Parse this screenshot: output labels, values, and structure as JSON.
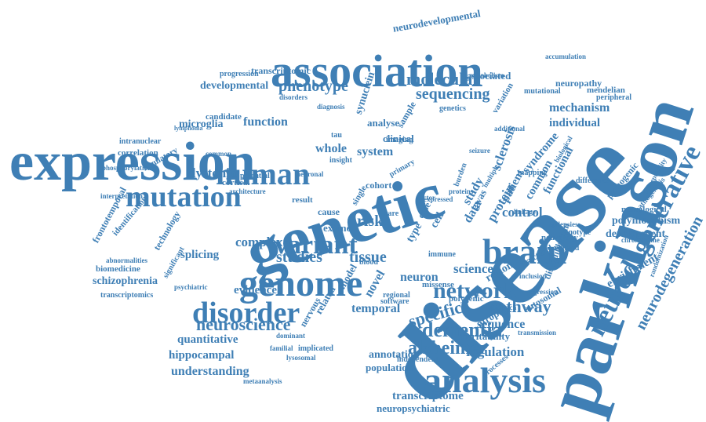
{
  "word_color": "#3f7fb5",
  "words": [
    "expression",
    "disease",
    "parkinson",
    "genetic",
    "association",
    "brain",
    "genome",
    "disorder",
    "analysis",
    "human",
    "mutation",
    "variant",
    "network",
    "neurodegenerative",
    "neurodegeneration",
    "dementia",
    "alzheimer",
    "neuroscience",
    "molecular",
    "sequencing",
    "phenotype",
    "studies",
    "tissue",
    "risk",
    "specific",
    "pathway",
    "complex",
    "neurodevelopmental",
    "transcriptomic",
    "developmental",
    "progression",
    "synuclein",
    "associated",
    "mechanism",
    "individual",
    "mutational",
    "neuropathy",
    "mendelian",
    "peripheral",
    "variation",
    "function",
    "microglia",
    "whole",
    "system",
    "clinical",
    "analyse",
    "sample",
    "candidate",
    "lymphoma",
    "intranuclear",
    "correlation",
    "regulatory",
    "phosphorylation",
    "dystonia",
    "interpretation",
    "frontotemporal",
    "identification",
    "technology",
    "biomedicine",
    "schizophrenia",
    "transcriptomics",
    "abnormalities",
    "significant",
    "splicing",
    "evidence",
    "psychiatric",
    "quantitative",
    "hippocampal",
    "understanding",
    "metaanalysis",
    "sequence",
    "heritability",
    "regulation",
    "annotation",
    "population",
    "transcriptome",
    "neuropsychiatric",
    "temporal",
    "atrophy",
    "polygenic",
    "autosomal",
    "science",
    "region",
    "neuron",
    "missense",
    "model",
    "novel",
    "exome",
    "protein",
    "sclerosis",
    "syndrome",
    "common",
    "patient",
    "functional",
    "control",
    "data",
    "study",
    "gwas",
    "cell",
    "type",
    "case",
    "cohort",
    "primary",
    "dominant",
    "development",
    "polymorphism",
    "neurological",
    "pathogenic",
    "pathogenesis",
    "enrichment",
    "disequilibrium",
    "genotype",
    "neurology",
    "mapping",
    "structural",
    "immune",
    "related",
    "nervous",
    "single",
    "cortical",
    "cause",
    "result",
    "potential",
    "insight",
    "tau",
    "genetics",
    "imaging",
    "software",
    "implicated",
    "independent",
    "processes",
    "regional",
    "blood",
    "difference",
    "susceptibility",
    "chromosome",
    "randomization",
    "accumulation",
    "linkage",
    "epilepsies",
    "weighted",
    "transmission",
    "inclusion",
    "regression",
    "metabolism",
    "biological",
    "additional",
    "approach",
    "seizure",
    "multiple",
    "rare",
    "expressed",
    "common",
    "familial",
    "lysosomal",
    "architecture",
    "proteins",
    "factor",
    "burden",
    "neuronal",
    "disorders",
    "diagnosis",
    "variants"
  ]
}
